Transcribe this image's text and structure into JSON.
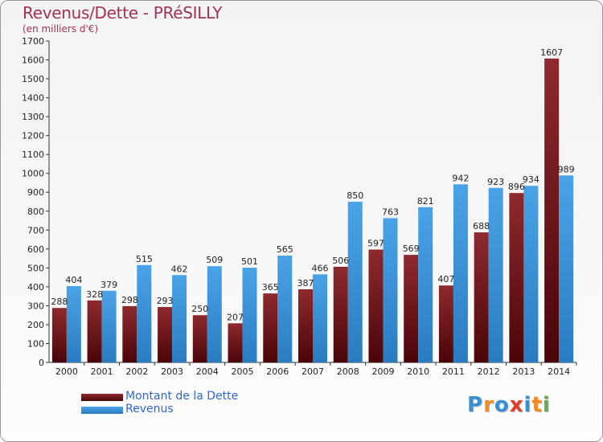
{
  "title": "Revenus/Dette - PRéSILLY",
  "subtitle": "(en milliers d'€)",
  "logo": {
    "text": "Proxiti",
    "letters": [
      "P",
      "r",
      "o",
      "x",
      "i",
      "t",
      "i"
    ],
    "colors": [
      "#3a8fd0",
      "#f08c1e",
      "#3a8fd0",
      "#e03c2a",
      "#3a8fd0",
      "#f08c1e",
      "#6aa84f"
    ]
  },
  "colors": {
    "dette": "#7a1c20",
    "revenus": "#3d96dc",
    "title": "#a0325a",
    "legend_text": "#3366cc"
  },
  "chart_data": {
    "type": "bar",
    "title": "Revenus/Dette - PRéSILLY",
    "ylabel": "(en milliers d'€)",
    "xlabel": "",
    "ylim": [
      0,
      1700
    ],
    "yticks": [
      0,
      100,
      200,
      300,
      400,
      500,
      600,
      700,
      800,
      900,
      1000,
      1100,
      1200,
      1300,
      1400,
      1500,
      1600,
      1700
    ],
    "grid": false,
    "legend_position": "bottom-left",
    "categories": [
      "2000",
      "2001",
      "2002",
      "2003",
      "2004",
      "2005",
      "2006",
      "2007",
      "2008",
      "2009",
      "2010",
      "2011",
      "2012",
      "2013",
      "2014"
    ],
    "series": [
      {
        "name": "Montant de la Dette",
        "color": "#7a1c20",
        "values": [
          288,
          328,
          298,
          293,
          250,
          207,
          365,
          387,
          506,
          597,
          569,
          407,
          688,
          896,
          1607
        ]
      },
      {
        "name": "Revenus",
        "color": "#3d96dc",
        "values": [
          404,
          379,
          515,
          462,
          509,
          501,
          565,
          466,
          850,
          763,
          821,
          942,
          923,
          934,
          989
        ]
      }
    ]
  }
}
